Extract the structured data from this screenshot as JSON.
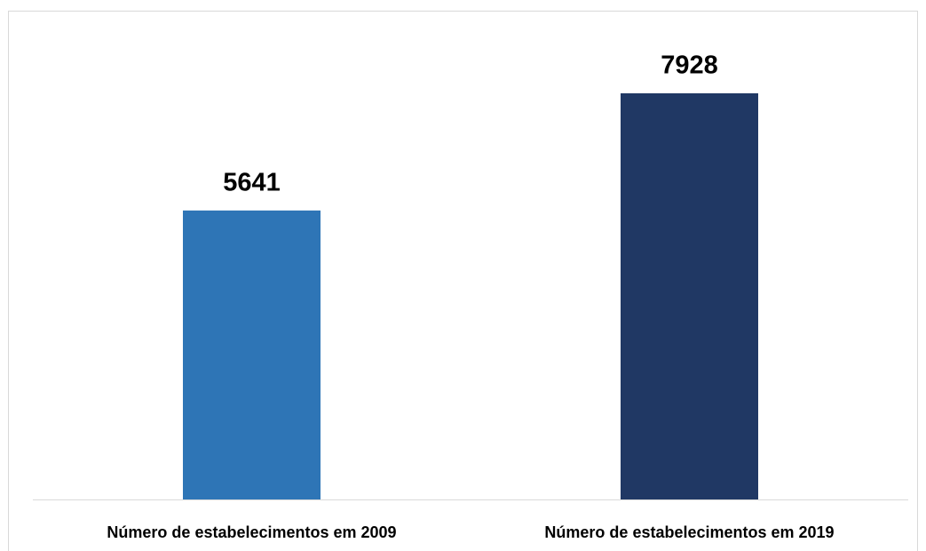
{
  "chart_data": {
    "type": "bar",
    "categories": [
      "Número de estabelecimentos em 2009",
      "Número de estabelecimentos em 2019"
    ],
    "values": [
      5641,
      7928
    ],
    "colors": [
      "#2e75b6",
      "#203864"
    ]
  }
}
